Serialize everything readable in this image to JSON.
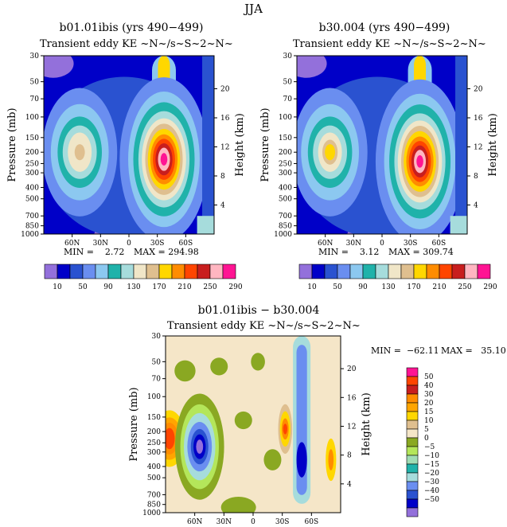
{
  "figure_title": "JJA",
  "colors": {
    "abs": [
      "#9370db",
      "#0000c8",
      "#2a52d0",
      "#6a8ef0",
      "#8cc8f0",
      "#20b2aa",
      "#a6dcdc",
      "#f0e6c8",
      "#dfbf8f",
      "#ffd700",
      "#ff8c00",
      "#ff4500",
      "#c81e1e",
      "#ffb6c1",
      "#ff1493"
    ],
    "diff": [
      "#ff1493",
      "#ff4500",
      "#c81e1e",
      "#ff8c00",
      "#ffa500",
      "#ffd700",
      "#dfbf8f",
      "#f5e6c8",
      "#8aa822",
      "#b4e65a",
      "#a0dcb4",
      "#20b2aa",
      "#a6dcdc",
      "#6a8ef0",
      "#2a52d0",
      "#0000c8",
      "#9370db"
    ]
  },
  "chart_data": [
    {
      "type": "heatmap",
      "title": "b01.01ibis (yrs 490−499)",
      "subtitle": "Transient eddy KE ~N~/s~S~2~N~",
      "ylabel": "Pressure (mb)",
      "ylabel_right": "Height (km)",
      "x_ticks": [
        "60N",
        "30N",
        "0",
        "30S",
        "60S"
      ],
      "y_ticks": [
        "30",
        "50",
        "70",
        "100",
        "150",
        "200",
        "250",
        "300",
        "400",
        "500",
        "700",
        "850",
        "1000"
      ],
      "y_right_ticks": [
        "20",
        "16",
        "12",
        "8",
        "4"
      ],
      "min_label": "MIN =    2.72",
      "max_label": "MAX = 294.98",
      "colorbar_labels": [
        "10",
        "50",
        "90",
        "130",
        "170",
        "210",
        "250",
        "290"
      ],
      "peaks": [
        {
          "lat": 52,
          "pressure": 200,
          "value": 140
        },
        {
          "lat": -37,
          "pressure": 230,
          "value": 294.98
        }
      ]
    },
    {
      "type": "heatmap",
      "title": "b30.004 (yrs 490−499)",
      "subtitle": "Transient eddy KE ~N~/s~S~2~N~",
      "ylabel": "Pressure (mb)",
      "ylabel_right": "Height (km)",
      "x_ticks": [
        "60N",
        "30N",
        "0",
        "30S",
        "60S"
      ],
      "y_ticks": [
        "30",
        "50",
        "70",
        "100",
        "150",
        "200",
        "250",
        "300",
        "400",
        "500",
        "700",
        "850",
        "1000"
      ],
      "y_right_ticks": [
        "20",
        "16",
        "12",
        "8",
        "4"
      ],
      "min_label": "MIN =    3.12",
      "max_label": "MAX = 309.74",
      "colorbar_labels": [
        "10",
        "50",
        "90",
        "130",
        "170",
        "210",
        "250",
        "290"
      ],
      "peaks": [
        {
          "lat": 55,
          "pressure": 200,
          "value": 180
        },
        {
          "lat": -40,
          "pressure": 240,
          "value": 309.74
        }
      ]
    },
    {
      "type": "heatmap",
      "title": "b01.01ibis − b30.004",
      "subtitle": "Transient eddy KE ~N~/s~S~2~N~",
      "ylabel": "Pressure (mb)",
      "ylabel_right": "Height (km)",
      "x_ticks": [
        "60N",
        "30N",
        "0",
        "30S",
        "60S"
      ],
      "y_ticks": [
        "30",
        "50",
        "70",
        "100",
        "150",
        "200",
        "250",
        "300",
        "400",
        "500",
        "700",
        "850",
        "1000"
      ],
      "y_right_ticks": [
        "20",
        "16",
        "12",
        "8",
        "4"
      ],
      "min_label": "MIN =  −62.11",
      "max_label": "MAX =   35.10",
      "colorbar_labels": [
        "50",
        "40",
        "30",
        "20",
        "15",
        "10",
        "5",
        "0",
        "−5",
        "−10",
        "−15",
        "−20",
        "−30",
        "−40",
        "−50"
      ],
      "extremes": [
        {
          "lat": 55,
          "pressure": 270,
          "value": -62.11
        },
        {
          "lat": -33,
          "pressure": 190,
          "value": 35.1
        }
      ]
    }
  ]
}
